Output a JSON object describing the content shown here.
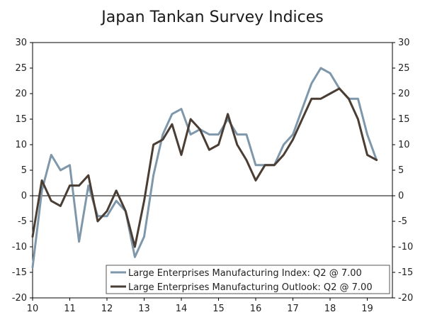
{
  "chart_data": {
    "type": "line",
    "title": "Japan Tankan Survey Indices",
    "xlabel": "",
    "ylabel": "",
    "ylim": [
      -20,
      30
    ],
    "yticks": [
      30,
      25,
      20,
      15,
      10,
      5,
      0,
      -5,
      -10,
      -15,
      -20
    ],
    "x_tick_labels": [
      "10",
      "11",
      "12",
      "13",
      "14",
      "15",
      "16",
      "17",
      "18",
      "19"
    ],
    "x": [
      "2010Q1",
      "2010Q2",
      "2010Q3",
      "2010Q4",
      "2011Q1",
      "2011Q2",
      "2011Q3",
      "2011Q4",
      "2012Q1",
      "2012Q2",
      "2012Q3",
      "2012Q4",
      "2013Q1",
      "2013Q2",
      "2013Q3",
      "2013Q4",
      "2014Q1",
      "2014Q2",
      "2014Q3",
      "2014Q4",
      "2015Q1",
      "2015Q2",
      "2015Q3",
      "2015Q4",
      "2016Q1",
      "2016Q2",
      "2016Q3",
      "2016Q4",
      "2017Q1",
      "2017Q2",
      "2017Q3",
      "2017Q4",
      "2018Q1",
      "2018Q2",
      "2018Q3",
      "2018Q4",
      "2019Q1",
      "2019Q2"
    ],
    "series": [
      {
        "name": "Large Enterprises Manufacturing Index: Q2 @ 7.00",
        "color": "#7f97aa",
        "values": [
          -14,
          1,
          8,
          5,
          6,
          -9,
          2,
          -4,
          -4,
          -1,
          -3,
          -12,
          -8,
          4,
          12,
          16,
          17,
          12,
          13,
          12,
          12,
          15,
          12,
          12,
          6,
          6,
          6,
          10,
          12,
          17,
          22,
          25,
          24,
          21,
          19,
          19,
          12,
          7
        ]
      },
      {
        "name": "Large Enterprises Manufacturing Outlook: Q2 @ 7.00",
        "color": "#4a3d34",
        "values": [
          -8,
          3,
          -1,
          -2,
          2,
          2,
          4,
          -5,
          -3,
          1,
          -3,
          -10,
          -1,
          10,
          11,
          14,
          8,
          15,
          13,
          9,
          10,
          16,
          10,
          7,
          3,
          6,
          6,
          8,
          11,
          15,
          19,
          19,
          20,
          21,
          19,
          15,
          8,
          7
        ]
      }
    ],
    "legend_position": "bottom-right",
    "grid": false
  }
}
